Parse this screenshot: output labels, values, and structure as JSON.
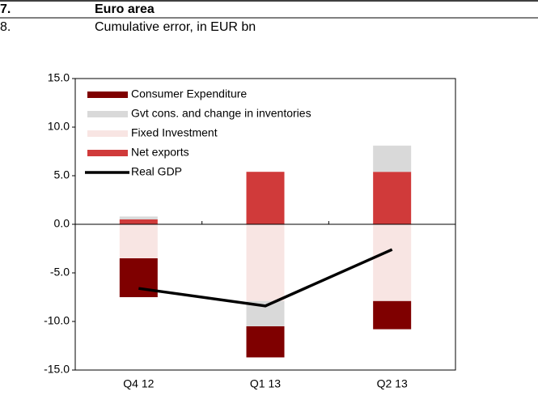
{
  "chart_data": {
    "type": "stacked_bar_line",
    "number": "7.",
    "title": "Euro area",
    "subnumber": "8.",
    "subtitle": "Cumulative error, in EUR bn",
    "categories": [
      "Q4 12",
      "Q1 13",
      "Q2 13"
    ],
    "series": [
      {
        "name": "Consumer Expenditure",
        "color": "#7f0000",
        "values": [
          -4.0,
          -3.2,
          -2.9
        ]
      },
      {
        "name": "Gvt cons. and change in inventories",
        "color": "#d9d9d9",
        "values": [
          0.3,
          -2.6,
          2.7
        ]
      },
      {
        "name": "Fixed Investment",
        "color": "#f8e5e3",
        "values": [
          -3.5,
          -7.9,
          -7.9
        ]
      },
      {
        "name": "Net exports",
        "color": "#d03a3a",
        "values": [
          0.5,
          5.4,
          5.4
        ]
      },
      {
        "name": "Real GDP",
        "color": "#000000",
        "type": "line",
        "values": [
          -6.6,
          -8.4,
          -2.6
        ]
      }
    ],
    "ylim": [
      -15,
      15
    ],
    "yticks": [
      {
        "value": -15,
        "label": "-15.0"
      },
      {
        "value": -10,
        "label": "-10.0"
      },
      {
        "value": -5,
        "label": "-5.0"
      },
      {
        "value": 0,
        "label": "0.0"
      },
      {
        "value": 5,
        "label": "5.0"
      },
      {
        "value": 10,
        "label": "10.0"
      },
      {
        "value": 15,
        "label": "15.0"
      }
    ],
    "legend": "upper left",
    "grid": false
  }
}
